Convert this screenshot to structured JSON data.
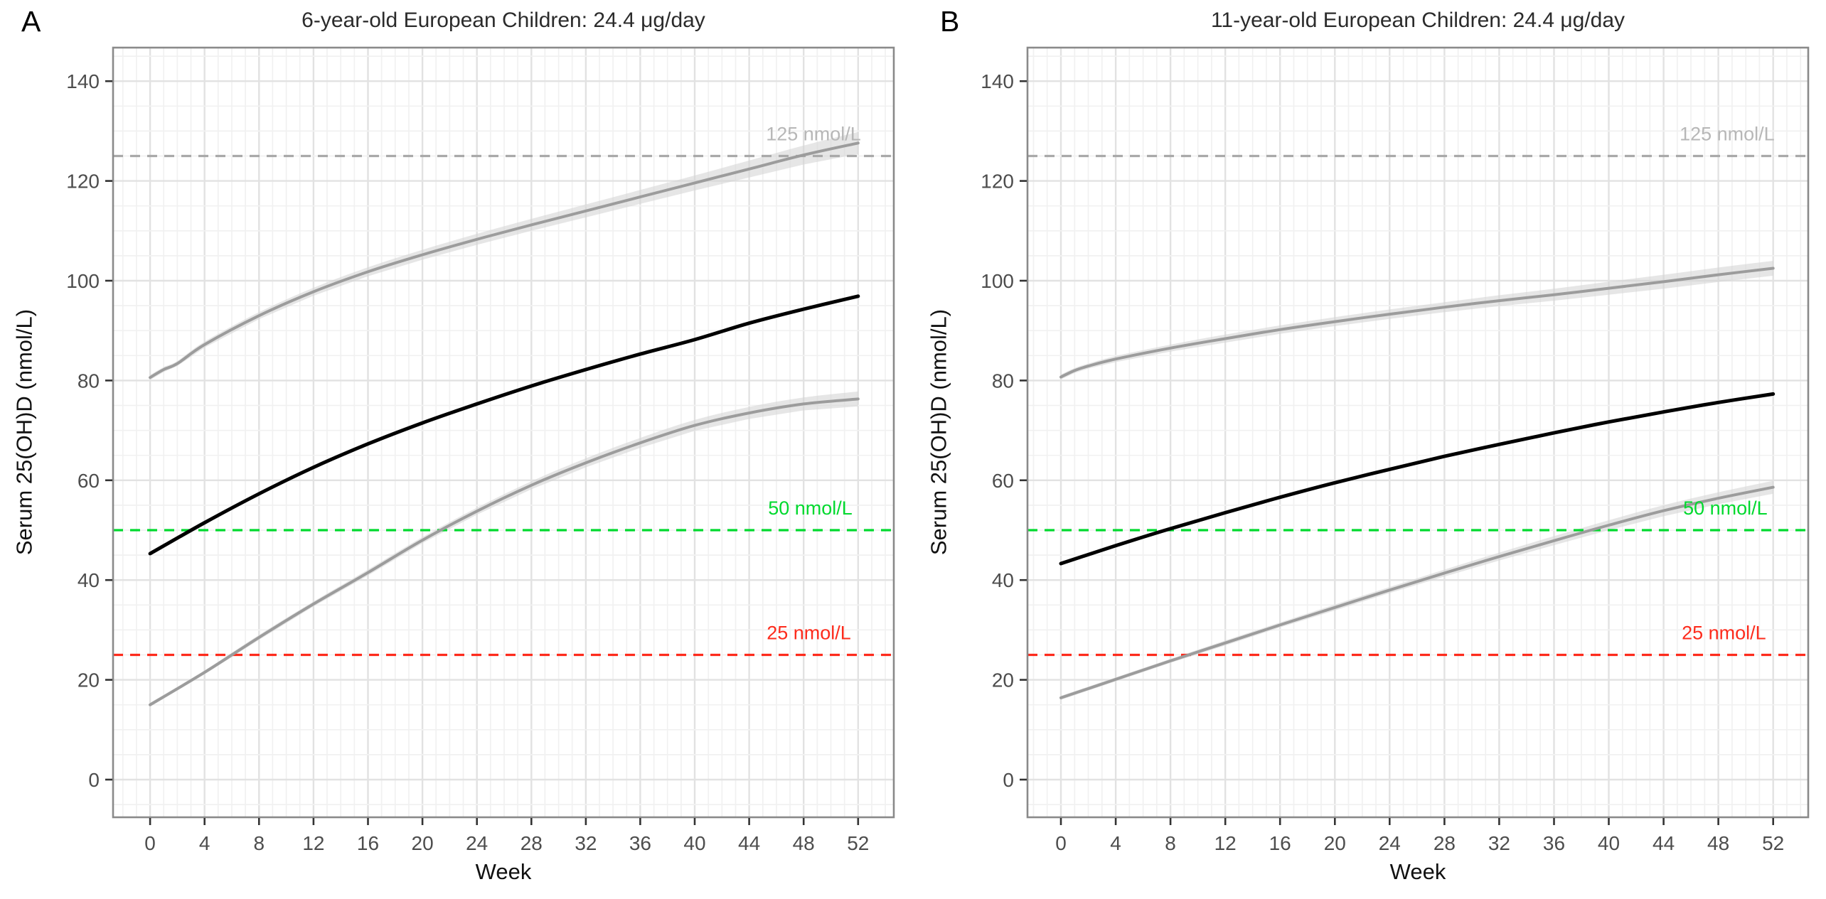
{
  "styles": {
    "background": "#ffffff",
    "grid_major": "#e2e2e2",
    "grid_minor": "#f1f1f1",
    "panel_border": "#8a8a8a",
    "tick_mark": "#333333",
    "tick_label": "#4d4d4d",
    "ribbon": "#d6d6d6",
    "gray_curve": "#9c9c9c",
    "black_curve": "#000000",
    "threshold_gray": "#a9a9a9",
    "threshold_gray_label": "#b7b7b7",
    "threshold_green": "#00d92e",
    "threshold_red": "#fd2b1c"
  },
  "chart_data": [
    {
      "id": "panel-a",
      "type": "line",
      "tag": "A",
      "title": "6-year-old European Children: 24.4 μg/day",
      "xlabel": "Week",
      "ylabel": "Serum 25(OH)D (nmol/L)",
      "xlim": [
        -2.72,
        54.62
      ],
      "ylim": [
        -7.55,
        146.73
      ],
      "x_ticks": [
        0,
        4,
        8,
        12,
        16,
        20,
        24,
        28,
        32,
        36,
        40,
        44,
        48,
        52
      ],
      "y_ticks": [
        0,
        20,
        40,
        60,
        80,
        100,
        120,
        140
      ],
      "x_minor_step": 1,
      "y_minor_step": 5,
      "grid": "on",
      "legend": "none",
      "series": [
        {
          "id": "upper-percentile-curve",
          "color": "#9c9c9c",
          "width": 4,
          "x": [
            0,
            1,
            2,
            4,
            8,
            12,
            16,
            20,
            24,
            28,
            32,
            36,
            40,
            44,
            48,
            52
          ],
          "y": [
            80.6,
            82.2,
            83.4,
            87.2,
            93.0,
            97.8,
            101.8,
            105.2,
            108.3,
            111.2,
            114.0,
            116.8,
            119.6,
            122.4,
            125.2,
            127.6
          ],
          "band": [
            0.5,
            0.5,
            0.5,
            0.6,
            0.7,
            0.8,
            0.9,
            1.0,
            1.1,
            1.2,
            1.3,
            1.4,
            1.5,
            1.7,
            1.9,
            2.2
          ]
        },
        {
          "id": "mean-curve",
          "color": "#000000",
          "width": 5,
          "x": [
            0,
            4,
            8,
            12,
            16,
            20,
            24,
            28,
            32,
            36,
            40,
            44,
            48,
            52
          ],
          "y": [
            45.3,
            51.5,
            57.3,
            62.6,
            67.3,
            71.5,
            75.3,
            78.9,
            82.2,
            85.3,
            88.2,
            91.5,
            94.3,
            96.9
          ]
        },
        {
          "id": "lower-percentile-curve",
          "color": "#9c9c9c",
          "width": 4,
          "x": [
            0,
            4,
            8,
            12,
            16,
            20,
            24,
            28,
            32,
            36,
            40,
            44,
            48,
            52
          ],
          "y": [
            15.0,
            21.5,
            28.5,
            35.2,
            41.5,
            48.0,
            53.8,
            59.0,
            63.5,
            67.5,
            71.0,
            73.5,
            75.3,
            76.3
          ],
          "band": [
            0.4,
            0.4,
            0.5,
            0.5,
            0.6,
            0.6,
            0.7,
            0.8,
            0.9,
            1.0,
            1.1,
            1.2,
            1.3,
            1.5
          ]
        }
      ],
      "thresholds": [
        {
          "label": "125 nmol/L",
          "value": 125,
          "line_color": "#a9a9a9",
          "label_color": "#b7b7b7",
          "align_offset": 4
        },
        {
          "label": "50 nmol/L",
          "value": 50,
          "line_color": "#00d92e",
          "label_color": "#00d92e",
          "align_offset": -8
        },
        {
          "label": "25 nmol/L",
          "value": 25,
          "line_color": "#fd2b1c",
          "label_color": "#fd2b1c",
          "align_offset": -10
        }
      ]
    },
    {
      "id": "panel-b",
      "type": "line",
      "tag": "B",
      "title": "11-year-old European Children: 24.4 μg/day",
      "xlabel": "Week",
      "ylabel": "Serum 25(OH)D (nmol/L)",
      "xlim": [
        -2.44,
        54.56
      ],
      "ylim": [
        -7.55,
        146.73
      ],
      "x_ticks": [
        0,
        4,
        8,
        12,
        16,
        20,
        24,
        28,
        32,
        36,
        40,
        44,
        48,
        52
      ],
      "y_ticks": [
        0,
        20,
        40,
        60,
        80,
        100,
        120,
        140
      ],
      "x_minor_step": 1,
      "y_minor_step": 5,
      "grid": "on",
      "legend": "none",
      "series": [
        {
          "id": "upper-percentile-curve",
          "color": "#9c9c9c",
          "width": 4,
          "x": [
            0,
            1,
            2,
            4,
            8,
            12,
            16,
            20,
            24,
            28,
            32,
            36,
            40,
            44,
            48,
            52
          ],
          "y": [
            80.7,
            82.0,
            82.9,
            84.3,
            86.5,
            88.4,
            90.2,
            91.8,
            93.3,
            94.7,
            96.0,
            97.2,
            98.5,
            99.8,
            101.2,
            102.5
          ],
          "band": [
            0.5,
            0.5,
            0.5,
            0.6,
            0.7,
            0.8,
            0.85,
            0.9,
            0.95,
            1.0,
            1.1,
            1.2,
            1.3,
            1.4,
            1.45,
            1.5
          ]
        },
        {
          "id": "mean-curve",
          "color": "#000000",
          "width": 5,
          "x": [
            0,
            4,
            8,
            12,
            16,
            20,
            24,
            28,
            32,
            36,
            40,
            44,
            48,
            52
          ],
          "y": [
            43.3,
            46.9,
            50.3,
            53.5,
            56.6,
            59.5,
            62.2,
            64.8,
            67.2,
            69.5,
            71.7,
            73.7,
            75.6,
            77.3
          ]
        },
        {
          "id": "lower-percentile-curve",
          "color": "#9c9c9c",
          "width": 4,
          "x": [
            0,
            4,
            8,
            12,
            16,
            20,
            24,
            28,
            32,
            36,
            40,
            44,
            48,
            52
          ],
          "y": [
            16.4,
            20.1,
            23.8,
            27.4,
            31.0,
            34.5,
            38.0,
            41.4,
            44.7,
            47.9,
            51.0,
            53.9,
            56.4,
            58.6
          ],
          "band": [
            0.4,
            0.4,
            0.4,
            0.5,
            0.5,
            0.6,
            0.6,
            0.7,
            0.8,
            0.9,
            1.0,
            1.1,
            1.2,
            1.3
          ]
        }
      ],
      "thresholds": [
        {
          "label": "125 nmol/L",
          "value": 125,
          "line_color": "#a9a9a9",
          "label_color": "#b7b7b7",
          "align_offset": 2
        },
        {
          "label": "50 nmol/L",
          "value": 50,
          "line_color": "#00d92e",
          "label_color": "#00d92e",
          "align_offset": -8
        },
        {
          "label": "25 nmol/L",
          "value": 25,
          "line_color": "#fd2b1c",
          "label_color": "#fd2b1c",
          "align_offset": -10
        }
      ]
    }
  ]
}
